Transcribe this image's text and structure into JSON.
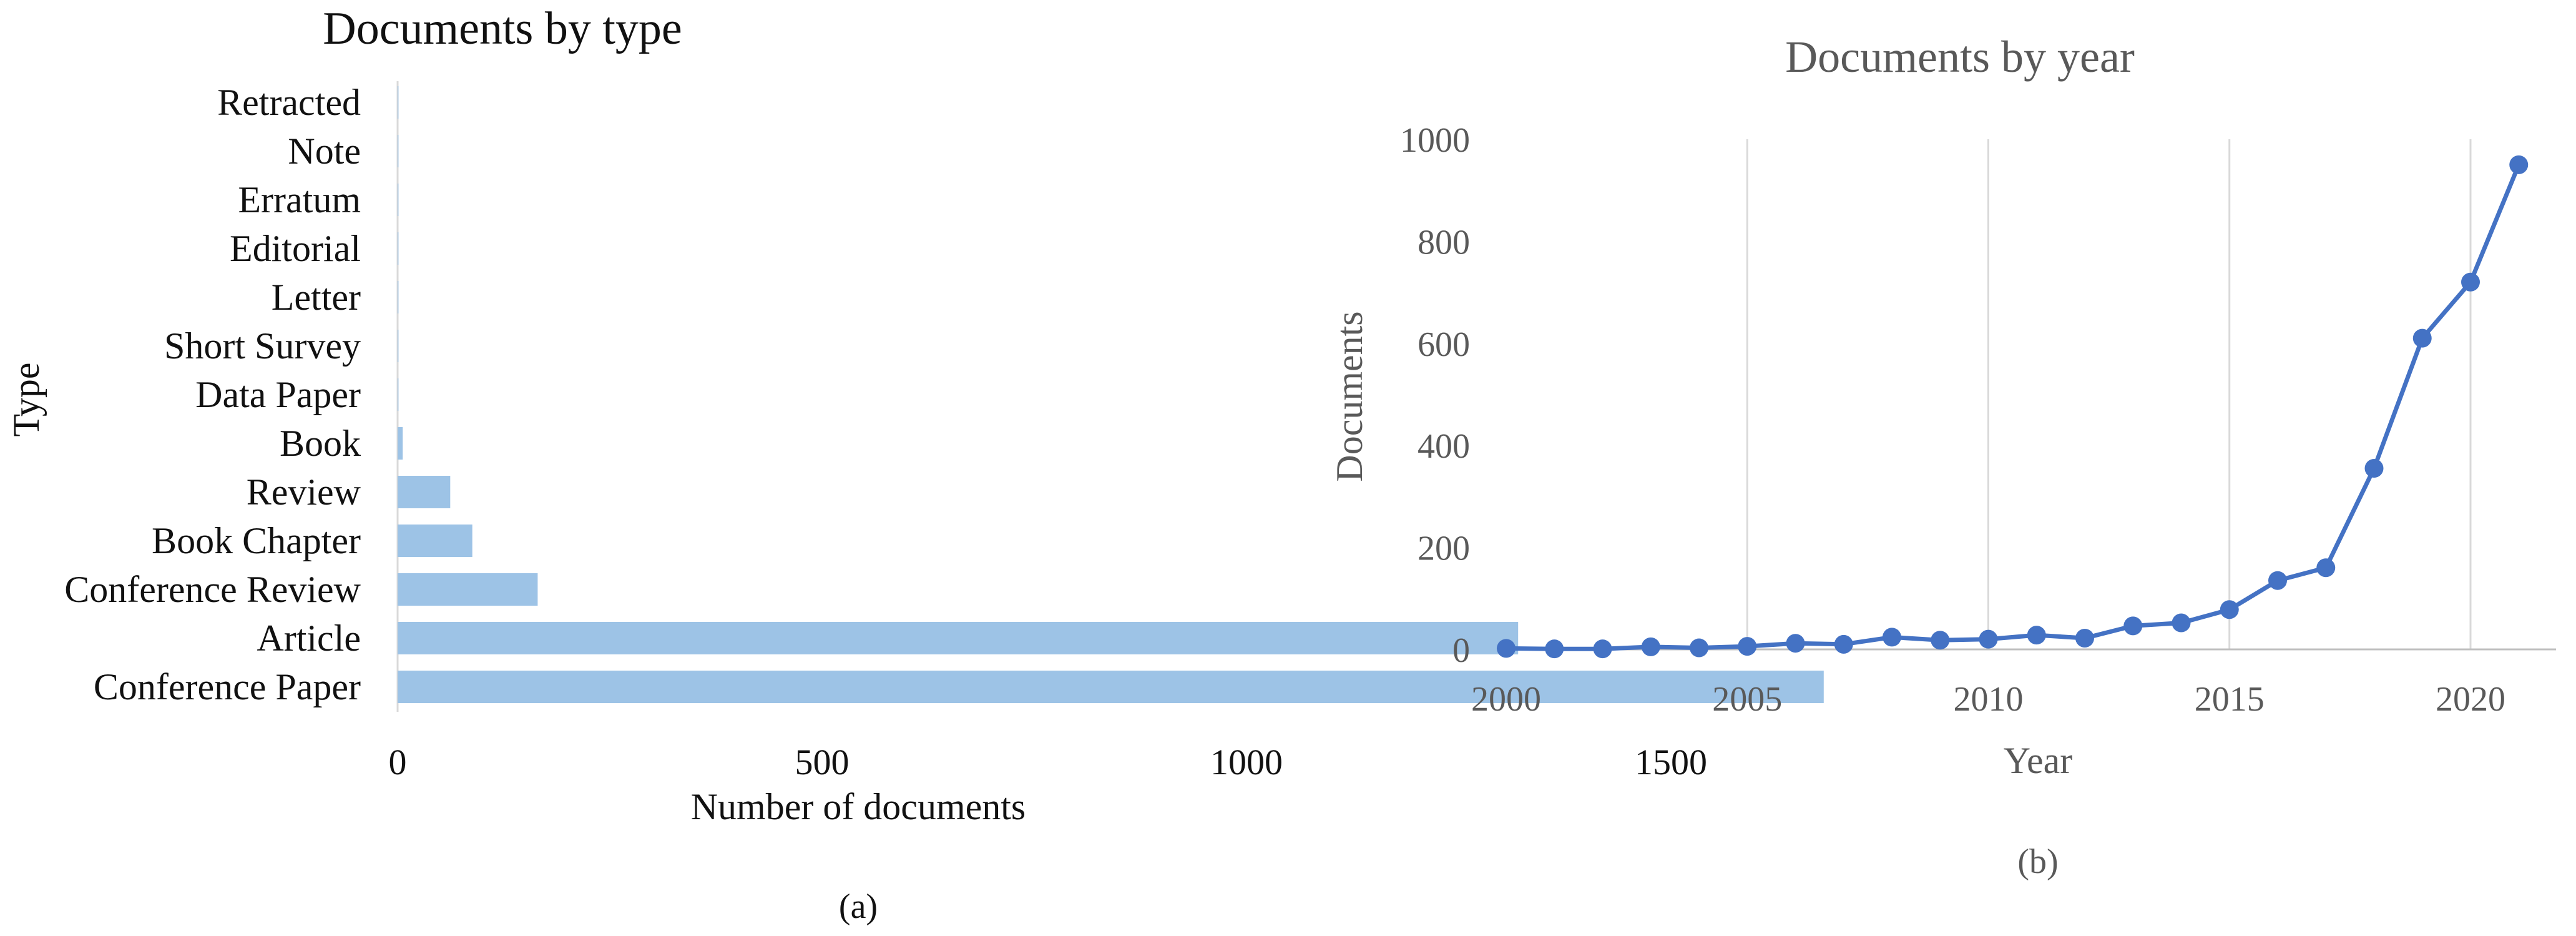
{
  "chart_data": [
    {
      "type": "bar",
      "orientation": "horizontal",
      "title": "Documents by type",
      "xlabel": "Number of documents",
      "ylabel": "Type",
      "caption": "(a)",
      "xlim": [
        0,
        1700
      ],
      "xticks": [
        "0",
        "500",
        "1000",
        "1500"
      ],
      "categories": [
        "Conference Paper",
        "Article",
        "Conference Review",
        "Book Chapter",
        "Review",
        "Book",
        "Data Paper",
        "Short Survey",
        "Letter",
        "Editorial",
        "Erratum",
        "Note",
        "Retracted"
      ],
      "values": [
        1680,
        1320,
        165,
        88,
        62,
        6,
        1,
        1,
        1,
        1,
        1,
        1,
        1
      ],
      "color": "#9dc3e6",
      "grid": false,
      "legend": "none"
    },
    {
      "type": "line",
      "title": "Documents by year",
      "xlabel": "Year",
      "ylabel": "Documents",
      "caption": "(b)",
      "xlim": [
        2000,
        2022
      ],
      "ylim": [
        0,
        1000
      ],
      "xticks": [
        "2000",
        "2005",
        "2010",
        "2015",
        "2020"
      ],
      "yticks": [
        "0",
        "200",
        "400",
        "600",
        "800",
        "1000"
      ],
      "x": [
        2000,
        2001,
        2002,
        2003,
        2004,
        2005,
        2006,
        2007,
        2008,
        2009,
        2010,
        2011,
        2012,
        2013,
        2014,
        2015,
        2016,
        2017,
        2018,
        2019,
        2020,
        2021
      ],
      "y": [
        2,
        1,
        1,
        5,
        3,
        6,
        12,
        10,
        24,
        18,
        20,
        28,
        22,
        46,
        52,
        78,
        135,
        160,
        355,
        610,
        720,
        950
      ],
      "color": "#4472c4",
      "grid": "vertical",
      "legend": "none"
    }
  ]
}
